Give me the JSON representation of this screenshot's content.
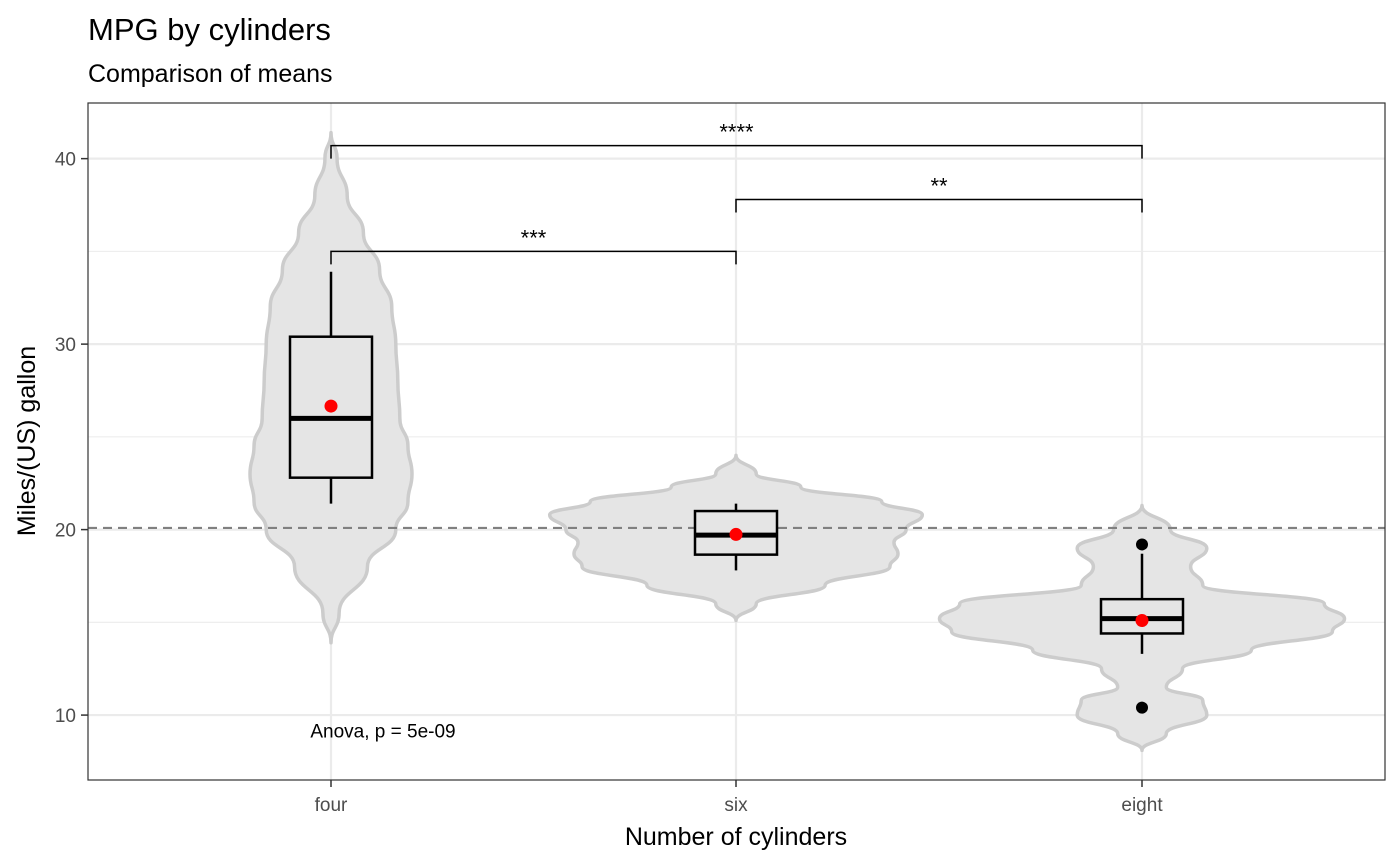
{
  "chart_data": {
    "type": "violin",
    "title": "MPG by cylinders",
    "subtitle": "Comparison of means",
    "xlabel": "Number of cylinders",
    "ylabel": "Miles/(US) gallon",
    "categories": [
      "four",
      "six",
      "eight"
    ],
    "ylim": [
      6.5,
      43
    ],
    "yticks": [
      10,
      20,
      30,
      40
    ],
    "grid": true,
    "reference_line": {
      "y": 20.09,
      "style": "dashed",
      "color": "#808080"
    },
    "groups": [
      {
        "category": "four",
        "box": {
          "q1": 22.8,
          "median": 26.0,
          "q3": 30.4,
          "whisker_low": 21.4,
          "whisker_high": 33.9
        },
        "mean": 26.66,
        "outliers": [],
        "violin": {
          "y": [
            13.9,
            15.5,
            18.0,
            20.0,
            21.5,
            23.0,
            24.5,
            26.0,
            28.0,
            30.0,
            32.0,
            34.0,
            36.0,
            38.0,
            40.0,
            41.4
          ],
          "halfwidth": [
            0.0,
            0.02,
            0.09,
            0.16,
            0.19,
            0.2,
            0.19,
            0.17,
            0.165,
            0.16,
            0.15,
            0.12,
            0.08,
            0.04,
            0.015,
            0.0
          ]
        }
      },
      {
        "category": "six",
        "box": {
          "q1": 18.65,
          "median": 19.7,
          "q3": 21.0,
          "whisker_low": 17.8,
          "whisker_high": 21.4
        },
        "mean": 19.74,
        "outliers": [],
        "violin": {
          "y": [
            15.1,
            16.0,
            17.0,
            18.0,
            18.7,
            19.3,
            20.0,
            20.8,
            21.5,
            22.3,
            23.0,
            24.0
          ],
          "halfwidth": [
            0.0,
            0.05,
            0.22,
            0.38,
            0.4,
            0.39,
            0.42,
            0.46,
            0.36,
            0.16,
            0.05,
            0.0
          ]
        }
      },
      {
        "category": "eight",
        "box": {
          "q1": 14.4,
          "median": 15.2,
          "q3": 16.25,
          "whisker_low": 13.3,
          "whisker_high": 18.7
        },
        "mean": 15.1,
        "outliers": [
          19.2,
          10.4
        ],
        "violin": {
          "y": [
            8.1,
            9.0,
            10.0,
            10.8,
            11.5,
            12.5,
            13.5,
            14.5,
            15.2,
            16.0,
            17.0,
            18.0,
            19.0,
            20.0,
            21.3
          ],
          "halfwidth": [
            0.0,
            0.06,
            0.16,
            0.15,
            0.06,
            0.1,
            0.27,
            0.47,
            0.5,
            0.45,
            0.15,
            0.12,
            0.16,
            0.07,
            0.0
          ]
        }
      }
    ],
    "comparisons": [
      {
        "from": "four",
        "to": "six",
        "label": "***",
        "y": 35.0
      },
      {
        "from": "six",
        "to": "eight",
        "label": "**",
        "y": 37.8
      },
      {
        "from": "four",
        "to": "eight",
        "label": "****",
        "y": 40.7
      }
    ],
    "annotation": {
      "text": "Anova, p = 5e-09",
      "x": "four",
      "y": 9.0
    },
    "colors": {
      "violin_fill": "#e5e5e5",
      "violin_stroke": "#cccccc",
      "mean_point": "#ff0000",
      "outlier_point": "#000000",
      "grid": "#ebebeb",
      "panel_border": "#333333"
    }
  }
}
